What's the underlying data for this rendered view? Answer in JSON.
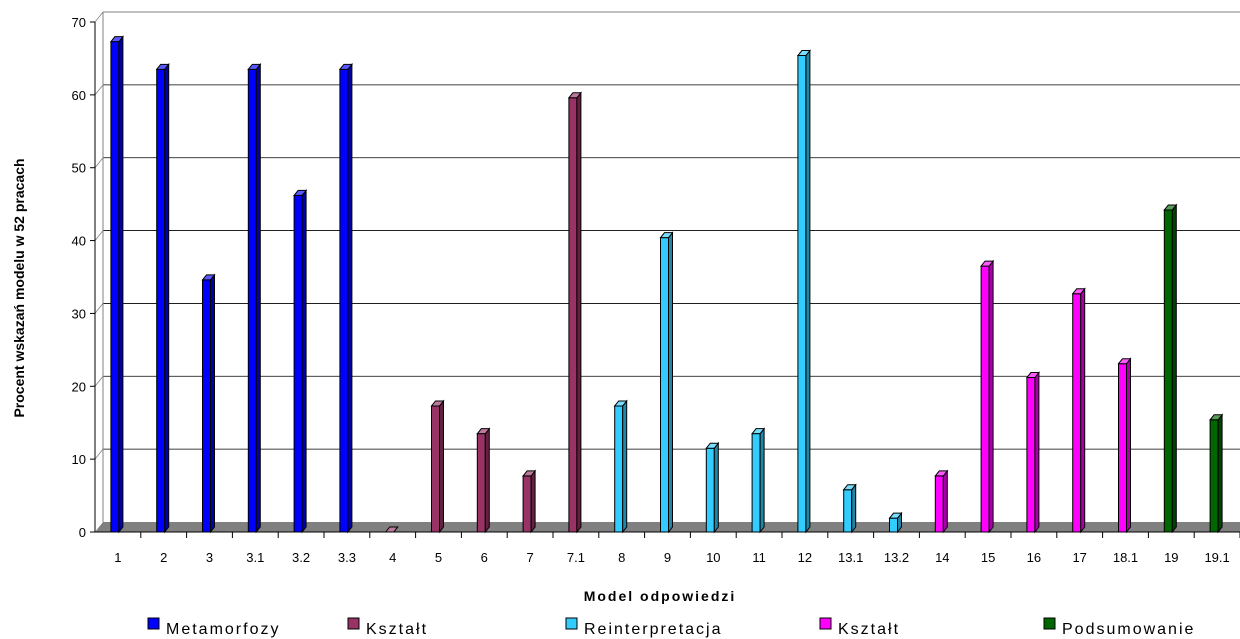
{
  "chart_data": {
    "type": "bar",
    "title": "",
    "xlabel": "Model odpowiedzi",
    "ylabel": "Procent wskazań modelu w 52 pracach",
    "ylim": [
      0,
      70
    ],
    "yticks": [
      0,
      10,
      20,
      30,
      40,
      50,
      60,
      70
    ],
    "grid": true,
    "legend_position": "bottom",
    "categories": [
      "1",
      "2",
      "3",
      "3.1",
      "3.2",
      "3.3",
      "4",
      "5",
      "6",
      "7",
      "7.1",
      "8",
      "9",
      "10",
      "11",
      "12",
      "13.1",
      "13.2",
      "14",
      "15",
      "16",
      "17",
      "18.1",
      "19",
      "19.1"
    ],
    "values": [
      67.3,
      63.5,
      34.6,
      63.5,
      46.2,
      63.5,
      0,
      17.3,
      13.5,
      7.7,
      59.6,
      17.3,
      40.4,
      11.5,
      13.5,
      65.4,
      5.8,
      1.9,
      7.7,
      36.5,
      21.2,
      32.7,
      23.1,
      44.2,
      15.4
    ],
    "groups": [
      0,
      0,
      0,
      0,
      0,
      0,
      1,
      1,
      1,
      1,
      1,
      2,
      2,
      2,
      2,
      2,
      2,
      2,
      3,
      3,
      3,
      3,
      3,
      4,
      4
    ],
    "series": [
      {
        "name": "Metamorfozy",
        "color": "#0000ff"
      },
      {
        "name": "Kształt",
        "color": "#993366"
      },
      {
        "name": "Reinterpretacja",
        "color": "#33ccff"
      },
      {
        "name": "Kształt",
        "color": "#ff00ff"
      },
      {
        "name": "Podsumowanie",
        "color": "#006600"
      }
    ]
  }
}
